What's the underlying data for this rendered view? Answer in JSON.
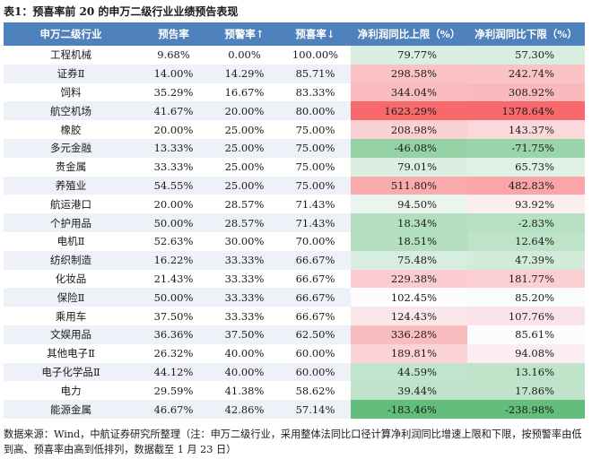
{
  "title": "表1：预喜率前 20 的申万二级行业业绩预告表现",
  "headers": [
    "申万二级行业",
    "预告率",
    "预警率↑",
    "预喜率↓",
    "净利润同比上限（%）",
    "净利润同比下限（%）"
  ],
  "rows": [
    [
      "工程机械",
      "9.68%",
      "0.00%",
      "100.00%",
      "79.77%",
      "57.30%"
    ],
    [
      "证券Ⅱ",
      "14.00%",
      "14.29%",
      "85.71%",
      "298.58%",
      "242.74%"
    ],
    [
      "饲料",
      "35.29%",
      "16.67%",
      "83.33%",
      "344.04%",
      "308.92%"
    ],
    [
      "航空机场",
      "41.67%",
      "20.00%",
      "80.00%",
      "1623.29%",
      "1378.64%"
    ],
    [
      "橡胶",
      "20.00%",
      "25.00%",
      "75.00%",
      "208.98%",
      "143.37%"
    ],
    [
      "多元金融",
      "13.33%",
      "25.00%",
      "75.00%",
      "-46.08%",
      "-71.75%"
    ],
    [
      "贵金属",
      "33.33%",
      "25.00%",
      "75.00%",
      "79.01%",
      "65.73%"
    ],
    [
      "养殖业",
      "54.55%",
      "25.00%",
      "75.00%",
      "511.80%",
      "482.83%"
    ],
    [
      "航运港口",
      "20.00%",
      "28.57%",
      "71.43%",
      "94.50%",
      "93.92%"
    ],
    [
      "个护用品",
      "50.00%",
      "28.57%",
      "71.43%",
      "18.34%",
      "-2.83%"
    ],
    [
      "电机Ⅱ",
      "52.63%",
      "30.00%",
      "70.00%",
      "18.51%",
      "12.64%"
    ],
    [
      "纺织制造",
      "16.22%",
      "33.33%",
      "66.67%",
      "75.48%",
      "47.39%"
    ],
    [
      "化妆品",
      "21.43%",
      "33.33%",
      "66.67%",
      "229.38%",
      "181.77%"
    ],
    [
      "保险Ⅱ",
      "50.00%",
      "33.33%",
      "66.67%",
      "102.45%",
      "85.20%"
    ],
    [
      "乘用车",
      "37.50%",
      "33.33%",
      "66.67%",
      "124.43%",
      "107.76%"
    ],
    [
      "文娱用品",
      "36.36%",
      "37.50%",
      "62.50%",
      "336.28%",
      "85.61%"
    ],
    [
      "其他电子Ⅱ",
      "26.32%",
      "40.00%",
      "60.00%",
      "189.81%",
      "94.08%"
    ],
    [
      "电子化学品Ⅱ",
      "44.12%",
      "40.00%",
      "60.00%",
      "44.59%",
      "13.16%"
    ],
    [
      "电力",
      "29.59%",
      "41.38%",
      "58.62%",
      "39.44%",
      "17.86%"
    ],
    [
      "能源金属",
      "46.67%",
      "42.86%",
      "57.14%",
      "-183.46%",
      "-238.98%"
    ]
  ],
  "heat_upper": [
    79.77,
    298.58,
    344.04,
    1623.29,
    208.98,
    -46.08,
    79.01,
    511.8,
    94.5,
    18.34,
    18.51,
    75.48,
    229.38,
    102.45,
    124.43,
    336.28,
    189.81,
    44.59,
    39.44,
    -183.46
  ],
  "heat_lower": [
    57.3,
    242.74,
    308.92,
    1378.64,
    143.37,
    -71.75,
    65.73,
    482.83,
    93.92,
    -2.83,
    12.64,
    47.39,
    181.77,
    85.2,
    107.76,
    85.61,
    94.08,
    13.16,
    17.86,
    -238.98
  ],
  "colors": {
    "header_bg": "#4f81bd",
    "heat_max": "#f8696b",
    "heat_mid": "#fcfcff",
    "heat_min": "#63be7b"
  },
  "note": "数据来源：Wind，中航证券研究所整理（注：申万二级行业，采用整体法同比口径计算净利润同比增速上限和下限，按预警率由低到高、预喜率由高到低排列，数据截至 1 月 23 日）"
}
